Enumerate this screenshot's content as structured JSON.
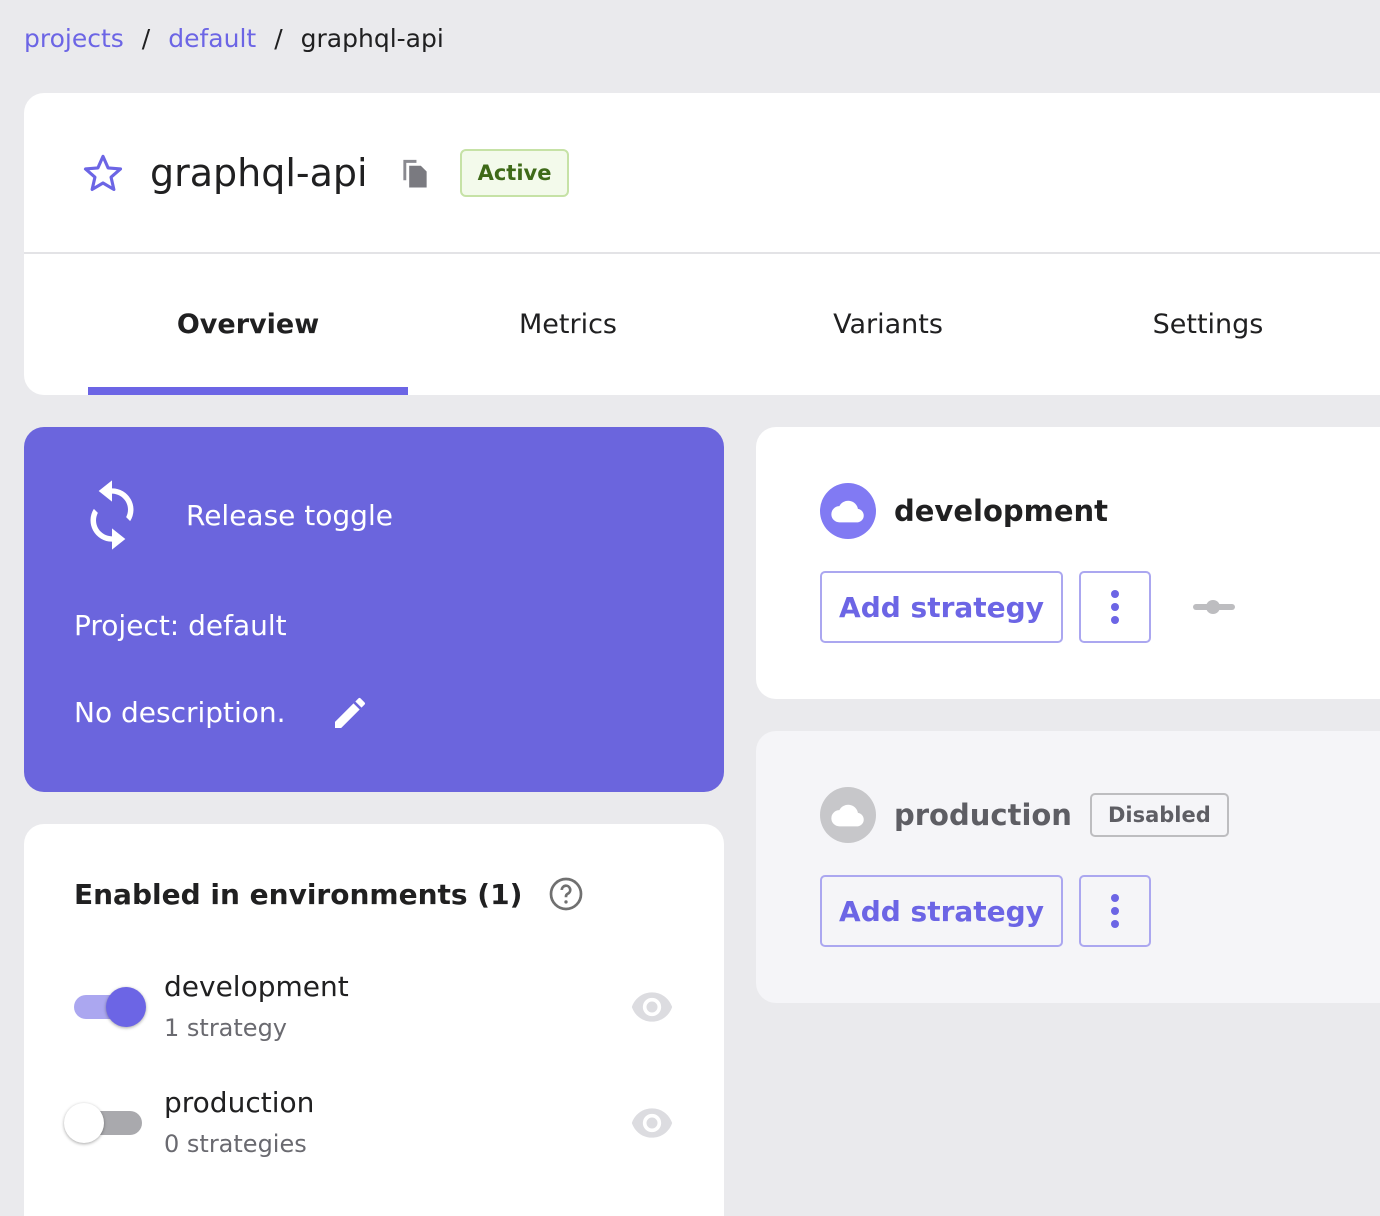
{
  "breadcrumb": {
    "items": [
      "projects",
      "default"
    ],
    "current": "graphql-api",
    "separator": "/"
  },
  "header": {
    "title": "graphql-api",
    "status": "Active",
    "icons": [
      "star-icon",
      "copy-icon"
    ]
  },
  "tabs": [
    {
      "label": "Overview",
      "active": true
    },
    {
      "label": "Metrics"
    },
    {
      "label": "Variants"
    },
    {
      "label": "Settings"
    }
  ],
  "summary": {
    "type": "Release toggle",
    "project": "Project: default",
    "description": "No description."
  },
  "environments_panel": {
    "title": "Enabled in environments (1)",
    "items": [
      {
        "name": "development",
        "strategies": "1 strategy",
        "enabled": true
      },
      {
        "name": "production",
        "strategies": "0 strategies",
        "enabled": false
      }
    ]
  },
  "env_cards": [
    {
      "name": "development",
      "add_label": "Add strategy",
      "disabled": false
    },
    {
      "name": "production",
      "add_label": "Add strategy",
      "disabled": true,
      "badge": "Disabled"
    }
  ],
  "colors": {
    "accent": "#6c65e5",
    "card": "#6b65dd",
    "active_badge": "#3e6a18"
  }
}
